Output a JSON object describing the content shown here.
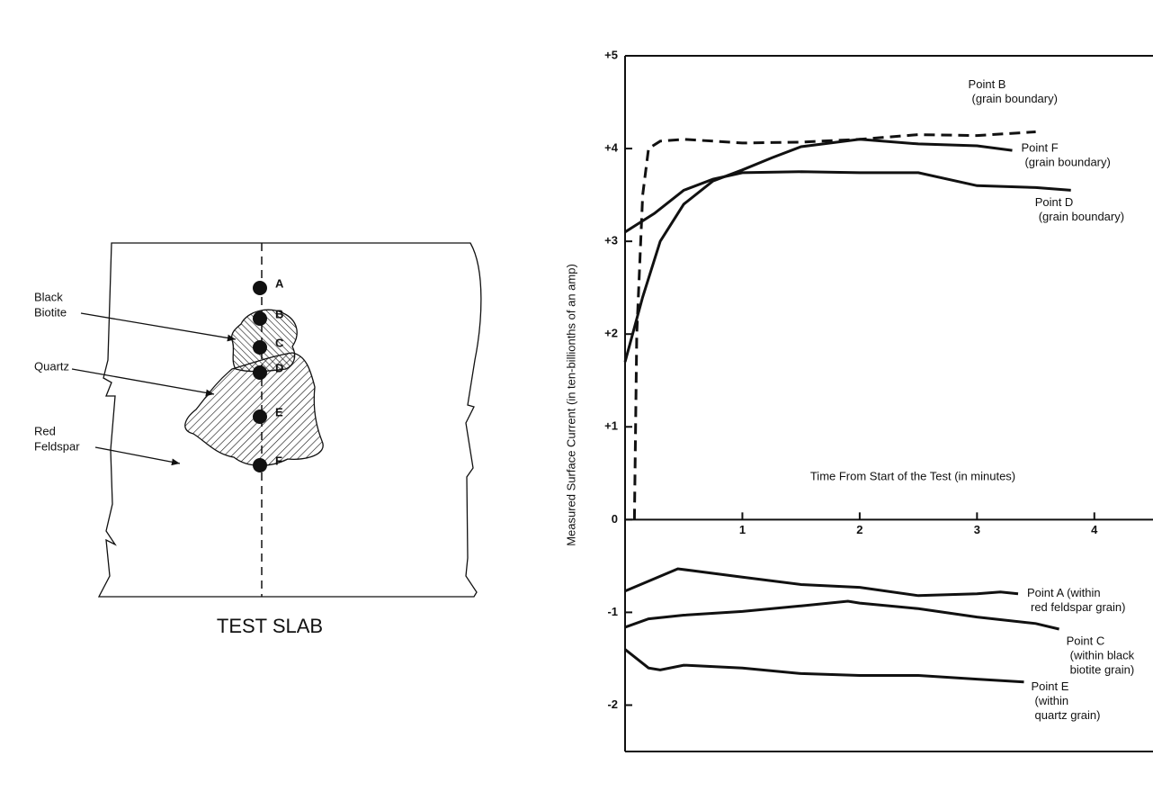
{
  "diagram": {
    "points": [
      "A",
      "B",
      "C",
      "D",
      "E",
      "F"
    ],
    "labels": {
      "biotite": [
        "Black",
        "Biotite"
      ],
      "quartz": "Quartz",
      "feldspar": [
        "Red",
        "Feldspar"
      ]
    },
    "caption": "TEST SLAB"
  },
  "chart_data": {
    "type": "line",
    "xlabel": "Time From Start of the Test (in minutes)",
    "ylabel": "Measured Surface Current (in ten-billionths of an amp)",
    "xlim": [
      0,
      4.5
    ],
    "xticks": [
      1,
      2,
      3,
      4
    ],
    "ylim": [
      -2.5,
      5
    ],
    "yticks": [
      {
        "value": 5,
        "label": "+5"
      },
      {
        "value": 4,
        "label": "+4"
      },
      {
        "value": 3,
        "label": "+3"
      },
      {
        "value": 2,
        "label": "+2"
      },
      {
        "value": 1,
        "label": "+1"
      },
      0,
      -1,
      -2
    ],
    "series": [
      {
        "label": [
          "Point B",
          "(grain boundary)"
        ],
        "color": "#111",
        "dash": true,
        "x": [
          0.08,
          0.1,
          0.15,
          0.2,
          0.3,
          0.5,
          0.75,
          1,
          1.5,
          2,
          2.5,
          3,
          3.5
        ],
        "values": [
          0,
          2.0,
          3.5,
          4.0,
          4.08,
          4.1,
          4.08,
          4.06,
          4.07,
          4.1,
          4.15,
          4.14,
          4.18
        ]
      },
      {
        "label": [
          "Point F",
          "(grain boundary)"
        ],
        "color": "#111",
        "dash": false,
        "x": [
          0,
          0.15,
          0.3,
          0.5,
          0.75,
          1,
          1.25,
          1.5,
          2,
          2.5,
          3,
          3.3
        ],
        "values": [
          1.7,
          2.4,
          3.0,
          3.4,
          3.65,
          3.77,
          3.9,
          4.02,
          4.1,
          4.05,
          4.03,
          3.98
        ]
      },
      {
        "label": [
          "Point D",
          "(grain boundary)"
        ],
        "color": "#111",
        "dash": false,
        "x": [
          0,
          0.25,
          0.5,
          0.75,
          1,
          1.5,
          2,
          2.5,
          3,
          3.5,
          3.8
        ],
        "values": [
          3.1,
          3.3,
          3.55,
          3.67,
          3.74,
          3.75,
          3.74,
          3.74,
          3.6,
          3.58,
          3.55
        ]
      },
      {
        "label": [
          "Point A (within",
          "red feldspar grain)"
        ],
        "color": "#111",
        "dash": false,
        "x": [
          0,
          0.45,
          1,
          1.5,
          2,
          2.5,
          3,
          3.2,
          3.35
        ],
        "values": [
          -0.77,
          -0.53,
          -0.62,
          -0.7,
          -0.73,
          -0.82,
          -0.8,
          -0.78,
          -0.8
        ]
      },
      {
        "label": [
          "Point C",
          "(within black",
          "biotite grain)"
        ],
        "color": "#111",
        "dash": false,
        "x": [
          0,
          0.2,
          0.5,
          1,
          1.5,
          1.9,
          2,
          2.5,
          3,
          3.5,
          3.7
        ],
        "values": [
          -1.16,
          -1.07,
          -1.03,
          -0.99,
          -0.93,
          -0.88,
          -0.9,
          -0.96,
          -1.05,
          -1.12,
          -1.18
        ]
      },
      {
        "label": [
          "Point E",
          "(within",
          "quartz grain)"
        ],
        "color": "#111",
        "dash": false,
        "x": [
          0,
          0.2,
          0.3,
          0.5,
          1,
          1.5,
          2,
          2.5,
          3,
          3.4
        ],
        "values": [
          -1.4,
          -1.6,
          -1.62,
          -1.57,
          -1.6,
          -1.66,
          -1.68,
          -1.68,
          -1.72,
          -1.75
        ]
      }
    ]
  }
}
